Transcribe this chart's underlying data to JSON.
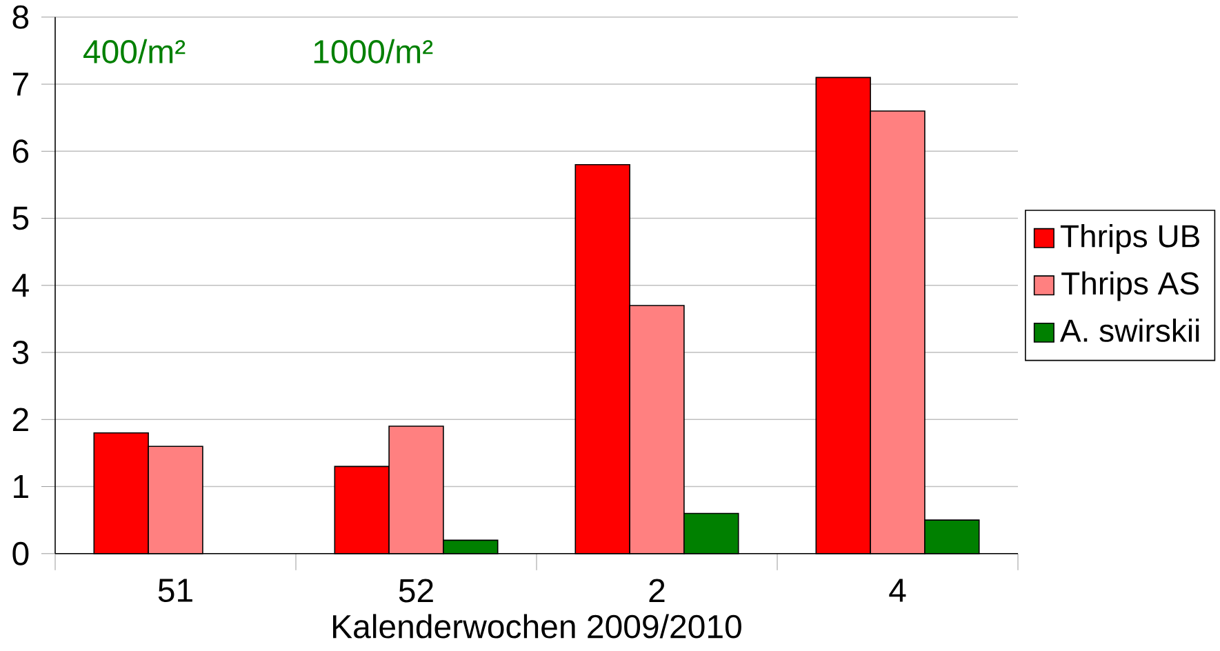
{
  "chart_data": {
    "type": "bar",
    "xlabel": "Kalenderwochen 2009/2010",
    "categories": [
      "51",
      "52",
      "2",
      "4"
    ],
    "series": [
      {
        "name": "Thrips UB",
        "color": "#ff0000",
        "values": [
          1.8,
          1.3,
          5.8,
          7.1
        ]
      },
      {
        "name": "Thrips AS",
        "color": "#ff8080",
        "values": [
          1.6,
          1.9,
          3.7,
          6.6
        ]
      },
      {
        "name": "A. swirskii",
        "color": "#008000",
        "values": [
          null,
          0.2,
          0.6,
          0.5
        ]
      }
    ],
    "ylim": [
      0,
      8
    ],
    "yticks": [
      0,
      1,
      2,
      3,
      4,
      5,
      6,
      7,
      8
    ],
    "grid": "y",
    "legend": "right",
    "annotations": [
      "400/m²",
      "1000/m²"
    ]
  }
}
